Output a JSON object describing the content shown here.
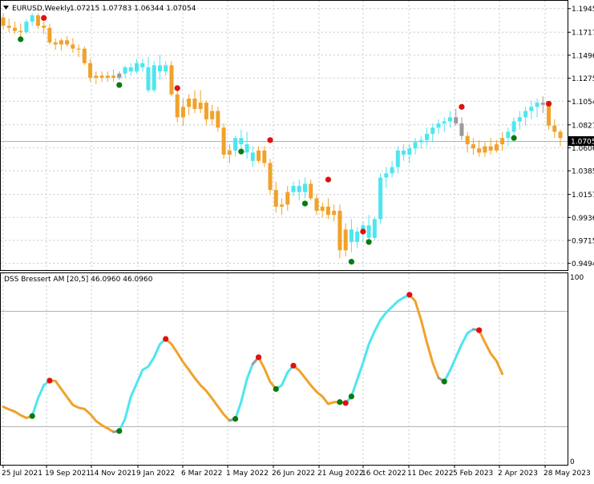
{
  "main_chart": {
    "title": "EURUSD,Weekly",
    "ohlc": "1.07215 1.07783 1.06344 1.07054",
    "current_price": "1.07054",
    "price_levels": [
      "1.19450",
      "1.17175",
      "1.14965",
      "1.12755",
      "1.10545",
      "1.08270",
      "1.06060",
      "1.03850",
      "1.01575",
      "0.99365",
      "0.97155",
      "0.94945"
    ]
  },
  "indicator": {
    "title": "DSS Bressert AM [20,5] 46.0960 46.0960",
    "scale_max": "100",
    "scale_min": "0"
  },
  "time_axis": [
    "25 Jul 2021",
    "19 Sep 2021",
    "14 Nov 2021",
    "9 Jan 2022",
    "6 Mar 2022",
    "1 May 2022",
    "26 Jun 2022",
    "21 Aug 2022",
    "16 Oct 2022",
    "11 Dec 2022",
    "5 Feb 2023",
    "2 Apr 2023",
    "28 May 2023"
  ],
  "colors": {
    "bull": "#4ee6ee",
    "bear": "#f0a22a",
    "neutral": "#9a9a9a",
    "dot_up": "#0a7a10",
    "dot_down": "#e01010"
  },
  "chart_data": [
    {
      "type": "candlestick",
      "symbol": "EURUSD",
      "timeframe": "Weekly",
      "ylim": [
        0.943,
        1.202
      ],
      "last_close": 1.07054,
      "candles": [
        {
          "o": 1.186,
          "h": 1.19,
          "l": 1.175,
          "c": 1.178,
          "t": "bear"
        },
        {
          "o": 1.178,
          "h": 1.185,
          "l": 1.172,
          "c": 1.176,
          "t": "bear"
        },
        {
          "o": 1.176,
          "h": 1.182,
          "l": 1.17,
          "c": 1.173,
          "t": "bear"
        },
        {
          "o": 1.173,
          "h": 1.18,
          "l": 1.166,
          "c": 1.172,
          "t": "bear"
        },
        {
          "o": 1.172,
          "h": 1.184,
          "l": 1.17,
          "c": 1.182,
          "t": "bull"
        },
        {
          "o": 1.182,
          "h": 1.19,
          "l": 1.178,
          "c": 1.188,
          "t": "bull"
        },
        {
          "o": 1.188,
          "h": 1.19,
          "l": 1.175,
          "c": 1.178,
          "t": "bear"
        },
        {
          "o": 1.178,
          "h": 1.182,
          "l": 1.17,
          "c": 1.176,
          "t": "bear"
        },
        {
          "o": 1.176,
          "h": 1.18,
          "l": 1.16,
          "c": 1.162,
          "t": "bear"
        },
        {
          "o": 1.162,
          "h": 1.166,
          "l": 1.155,
          "c": 1.16,
          "t": "bear"
        },
        {
          "o": 1.16,
          "h": 1.166,
          "l": 1.154,
          "c": 1.164,
          "t": "bear"
        },
        {
          "o": 1.164,
          "h": 1.168,
          "l": 1.158,
          "c": 1.16,
          "t": "bear"
        },
        {
          "o": 1.16,
          "h": 1.166,
          "l": 1.152,
          "c": 1.156,
          "t": "bear"
        },
        {
          "o": 1.156,
          "h": 1.16,
          "l": 1.148,
          "c": 1.156,
          "t": "bear"
        },
        {
          "o": 1.156,
          "h": 1.158,
          "l": 1.14,
          "c": 1.142,
          "t": "bear"
        },
        {
          "o": 1.142,
          "h": 1.146,
          "l": 1.124,
          "c": 1.128,
          "t": "bear"
        },
        {
          "o": 1.128,
          "h": 1.134,
          "l": 1.122,
          "c": 1.13,
          "t": "bear"
        },
        {
          "o": 1.13,
          "h": 1.134,
          "l": 1.124,
          "c": 1.128,
          "t": "bear"
        },
        {
          "o": 1.128,
          "h": 1.134,
          "l": 1.124,
          "c": 1.13,
          "t": "bear"
        },
        {
          "o": 1.13,
          "h": 1.136,
          "l": 1.124,
          "c": 1.128,
          "t": "bear"
        },
        {
          "o": 1.128,
          "h": 1.134,
          "l": 1.126,
          "c": 1.132,
          "t": "neutral"
        },
        {
          "o": 1.132,
          "h": 1.14,
          "l": 1.128,
          "c": 1.138,
          "t": "bull"
        },
        {
          "o": 1.138,
          "h": 1.142,
          "l": 1.13,
          "c": 1.134,
          "t": "bull"
        },
        {
          "o": 1.134,
          "h": 1.146,
          "l": 1.132,
          "c": 1.142,
          "t": "bull"
        },
        {
          "o": 1.142,
          "h": 1.146,
          "l": 1.134,
          "c": 1.138,
          "t": "bull"
        },
        {
          "o": 1.138,
          "h": 1.148,
          "l": 1.114,
          "c": 1.116,
          "t": "bull"
        },
        {
          "o": 1.116,
          "h": 1.144,
          "l": 1.114,
          "c": 1.14,
          "t": "bull"
        },
        {
          "o": 1.14,
          "h": 1.15,
          "l": 1.126,
          "c": 1.134,
          "t": "bull"
        },
        {
          "o": 1.134,
          "h": 1.144,
          "l": 1.13,
          "c": 1.14,
          "t": "bull"
        },
        {
          "o": 1.14,
          "h": 1.144,
          "l": 1.11,
          "c": 1.112,
          "t": "bear"
        },
        {
          "o": 1.112,
          "h": 1.116,
          "l": 1.085,
          "c": 1.09,
          "t": "bear"
        },
        {
          "o": 1.09,
          "h": 1.108,
          "l": 1.082,
          "c": 1.1,
          "t": "bear"
        },
        {
          "o": 1.1,
          "h": 1.112,
          "l": 1.092,
          "c": 1.108,
          "t": "bear"
        },
        {
          "o": 1.108,
          "h": 1.116,
          "l": 1.094,
          "c": 1.098,
          "t": "bear"
        },
        {
          "o": 1.098,
          "h": 1.116,
          "l": 1.094,
          "c": 1.104,
          "t": "bear"
        },
        {
          "o": 1.104,
          "h": 1.106,
          "l": 1.082,
          "c": 1.088,
          "t": "bear"
        },
        {
          "o": 1.088,
          "h": 1.102,
          "l": 1.082,
          "c": 1.096,
          "t": "bear"
        },
        {
          "o": 1.096,
          "h": 1.1,
          "l": 1.076,
          "c": 1.08,
          "t": "bear"
        },
        {
          "o": 1.08,
          "h": 1.084,
          "l": 1.05,
          "c": 1.054,
          "t": "bear"
        },
        {
          "o": 1.054,
          "h": 1.064,
          "l": 1.046,
          "c": 1.058,
          "t": "bear"
        },
        {
          "o": 1.058,
          "h": 1.072,
          "l": 1.052,
          "c": 1.07,
          "t": "bull"
        },
        {
          "o": 1.07,
          "h": 1.078,
          "l": 1.06,
          "c": 1.064,
          "t": "bull"
        },
        {
          "o": 1.064,
          "h": 1.076,
          "l": 1.05,
          "c": 1.056,
          "t": "bull"
        },
        {
          "o": 1.056,
          "h": 1.062,
          "l": 1.042,
          "c": 1.048,
          "t": "bull"
        },
        {
          "o": 1.048,
          "h": 1.062,
          "l": 1.046,
          "c": 1.058,
          "t": "bear"
        },
        {
          "o": 1.058,
          "h": 1.062,
          "l": 1.042,
          "c": 1.046,
          "t": "bear"
        },
        {
          "o": 1.046,
          "h": 1.05,
          "l": 1.016,
          "c": 1.02,
          "t": "bear"
        },
        {
          "o": 1.02,
          "h": 1.028,
          "l": 0.998,
          "c": 1.004,
          "t": "bear"
        },
        {
          "o": 1.004,
          "h": 1.012,
          "l": 0.996,
          "c": 1.006,
          "t": "bear"
        },
        {
          "o": 1.006,
          "h": 1.024,
          "l": 1.0,
          "c": 1.018,
          "t": "bear"
        },
        {
          "o": 1.018,
          "h": 1.028,
          "l": 1.014,
          "c": 1.024,
          "t": "bull"
        },
        {
          "o": 1.024,
          "h": 1.03,
          "l": 1.01,
          "c": 1.018,
          "t": "bull"
        },
        {
          "o": 1.018,
          "h": 1.032,
          "l": 1.012,
          "c": 1.026,
          "t": "bull"
        },
        {
          "o": 1.026,
          "h": 1.03,
          "l": 1.01,
          "c": 1.012,
          "t": "bear"
        },
        {
          "o": 1.012,
          "h": 1.016,
          "l": 0.996,
          "c": 1.0,
          "t": "bear"
        },
        {
          "o": 1.0,
          "h": 1.008,
          "l": 0.994,
          "c": 1.004,
          "t": "bear"
        },
        {
          "o": 1.004,
          "h": 1.012,
          "l": 0.992,
          "c": 0.996,
          "t": "bear"
        },
        {
          "o": 0.996,
          "h": 1.006,
          "l": 0.99,
          "c": 1.0,
          "t": "bear"
        },
        {
          "o": 1.0,
          "h": 1.006,
          "l": 0.954,
          "c": 0.962,
          "t": "bear"
        },
        {
          "o": 0.962,
          "h": 0.988,
          "l": 0.956,
          "c": 0.982,
          "t": "bear"
        },
        {
          "o": 0.982,
          "h": 0.992,
          "l": 0.96,
          "c": 0.97,
          "t": "bull"
        },
        {
          "o": 0.97,
          "h": 0.984,
          "l": 0.964,
          "c": 0.98,
          "t": "bull"
        },
        {
          "o": 0.98,
          "h": 0.99,
          "l": 0.97,
          "c": 0.986,
          "t": "bull"
        },
        {
          "o": 0.986,
          "h": 0.996,
          "l": 0.97,
          "c": 0.974,
          "t": "bull"
        },
        {
          "o": 0.974,
          "h": 0.994,
          "l": 0.972,
          "c": 0.992,
          "t": "bull"
        },
        {
          "o": 0.992,
          "h": 1.036,
          "l": 0.988,
          "c": 1.032,
          "t": "bull"
        },
        {
          "o": 1.032,
          "h": 1.042,
          "l": 1.022,
          "c": 1.036,
          "t": "bull"
        },
        {
          "o": 1.036,
          "h": 1.048,
          "l": 1.032,
          "c": 1.042,
          "t": "bull"
        },
        {
          "o": 1.042,
          "h": 1.062,
          "l": 1.036,
          "c": 1.058,
          "t": "bull"
        },
        {
          "o": 1.058,
          "h": 1.064,
          "l": 1.048,
          "c": 1.054,
          "t": "bull"
        },
        {
          "o": 1.054,
          "h": 1.064,
          "l": 1.046,
          "c": 1.06,
          "t": "bull"
        },
        {
          "o": 1.06,
          "h": 1.07,
          "l": 1.054,
          "c": 1.066,
          "t": "bull"
        },
        {
          "o": 1.066,
          "h": 1.072,
          "l": 1.06,
          "c": 1.068,
          "t": "bull"
        },
        {
          "o": 1.068,
          "h": 1.08,
          "l": 1.062,
          "c": 1.074,
          "t": "bull"
        },
        {
          "o": 1.074,
          "h": 1.084,
          "l": 1.066,
          "c": 1.08,
          "t": "bull"
        },
        {
          "o": 1.08,
          "h": 1.088,
          "l": 1.074,
          "c": 1.084,
          "t": "bull"
        },
        {
          "o": 1.084,
          "h": 1.09,
          "l": 1.076,
          "c": 1.086,
          "t": "bull"
        },
        {
          "o": 1.086,
          "h": 1.096,
          "l": 1.08,
          "c": 1.09,
          "t": "bull"
        },
        {
          "o": 1.09,
          "h": 1.098,
          "l": 1.082,
          "c": 1.084,
          "t": "neutral"
        },
        {
          "o": 1.084,
          "h": 1.09,
          "l": 1.068,
          "c": 1.072,
          "t": "neutral"
        },
        {
          "o": 1.072,
          "h": 1.076,
          "l": 1.056,
          "c": 1.064,
          "t": "bear"
        },
        {
          "o": 1.064,
          "h": 1.07,
          "l": 1.054,
          "c": 1.06,
          "t": "bear"
        },
        {
          "o": 1.06,
          "h": 1.068,
          "l": 1.052,
          "c": 1.056,
          "t": "bear"
        },
        {
          "o": 1.056,
          "h": 1.066,
          "l": 1.052,
          "c": 1.062,
          "t": "bear"
        },
        {
          "o": 1.062,
          "h": 1.07,
          "l": 1.054,
          "c": 1.058,
          "t": "bear"
        },
        {
          "o": 1.058,
          "h": 1.068,
          "l": 1.056,
          "c": 1.064,
          "t": "bear"
        },
        {
          "o": 1.064,
          "h": 1.076,
          "l": 1.058,
          "c": 1.07,
          "t": "bear"
        },
        {
          "o": 1.07,
          "h": 1.08,
          "l": 1.062,
          "c": 1.076,
          "t": "bull"
        },
        {
          "o": 1.076,
          "h": 1.09,
          "l": 1.07,
          "c": 1.086,
          "t": "bull"
        },
        {
          "o": 1.086,
          "h": 1.096,
          "l": 1.078,
          "c": 1.09,
          "t": "bull"
        },
        {
          "o": 1.09,
          "h": 1.1,
          "l": 1.082,
          "c": 1.096,
          "t": "bull"
        },
        {
          "o": 1.096,
          "h": 1.106,
          "l": 1.088,
          "c": 1.1,
          "t": "bull"
        },
        {
          "o": 1.1,
          "h": 1.108,
          "l": 1.09,
          "c": 1.104,
          "t": "bull"
        },
        {
          "o": 1.104,
          "h": 1.11,
          "l": 1.094,
          "c": 1.102,
          "t": "neutral"
        },
        {
          "o": 1.102,
          "h": 1.104,
          "l": 1.078,
          "c": 1.082,
          "t": "bear"
        },
        {
          "o": 1.082,
          "h": 1.088,
          "l": 1.07,
          "c": 1.076,
          "t": "bear"
        },
        {
          "o": 1.076,
          "h": 1.078,
          "l": 1.062,
          "c": 1.07,
          "t": "bear"
        }
      ],
      "dots": [
        {
          "i": 3,
          "v": 1.165,
          "t": "up"
        },
        {
          "i": 7,
          "v": 1.1855,
          "t": "down"
        },
        {
          "i": 20,
          "v": 1.121,
          "t": "up"
        },
        {
          "i": 30,
          "v": 1.118,
          "t": "down"
        },
        {
          "i": 41,
          "v": 1.057,
          "t": "up"
        },
        {
          "i": 46,
          "v": 1.068,
          "t": "down"
        },
        {
          "i": 52,
          "v": 1.007,
          "t": "up"
        },
        {
          "i": 56,
          "v": 1.03,
          "t": "down"
        },
        {
          "i": 60,
          "v": 0.951,
          "t": "up"
        },
        {
          "i": 62,
          "v": 0.98,
          "t": "down"
        },
        {
          "i": 63,
          "v": 0.97,
          "t": "up"
        },
        {
          "i": 79,
          "v": 1.1,
          "t": "down"
        },
        {
          "i": 88,
          "v": 1.07,
          "t": "up"
        },
        {
          "i": 94,
          "v": 1.103,
          "t": "down"
        }
      ]
    },
    {
      "type": "line",
      "title": "DSS Bressert AM [20,5] 46.0960 46.0960",
      "ylim": [
        0,
        100
      ],
      "levels": [
        20,
        80
      ],
      "last_value": 46.096,
      "values": [
        28.5,
        27.1,
        25.9,
        24.0,
        22.5,
        23.5,
        33.0,
        40.0,
        42.5,
        42.3,
        38.0,
        33.7,
        29.5,
        28.0,
        27.3,
        24.6,
        20.9,
        18.6,
        16.9,
        15.0,
        15.5,
        22.0,
        34.0,
        41.0,
        48.2,
        50.0,
        55.0,
        62.0,
        64.8,
        62.0,
        57.4,
        52.4,
        48.2,
        43.9,
        40.0,
        37.0,
        32.9,
        28.6,
        24.4,
        21.1,
        22.0,
        31.0,
        43.4,
        51.4,
        55.0,
        49.0,
        41.9,
        38.0,
        40.0,
        47.0,
        50.5,
        48.0,
        44.0,
        40.0,
        36.5,
        34.0,
        30.0,
        31.0,
        31.0,
        30.5,
        34.0,
        43.0,
        52.0,
        62.0,
        69.0,
        75.0,
        79.0,
        82.0,
        85.0,
        87.0,
        88.5,
        85.0,
        75.0,
        63.0,
        52.0,
        44.0,
        42.0,
        48.0,
        55.0,
        62.0,
        68.0,
        70.0,
        69.5,
        63.0,
        57.0,
        53.0,
        46.1
      ],
      "segments": [
        {
          "from": 0,
          "to": 5,
          "t": "bear"
        },
        {
          "from": 5,
          "to": 8,
          "t": "bull"
        },
        {
          "from": 8,
          "to": 19,
          "t": "bear"
        },
        {
          "from": 19,
          "to": 20,
          "t": "neutral"
        },
        {
          "from": 20,
          "to": 28,
          "t": "bull"
        },
        {
          "from": 28,
          "to": 39,
          "t": "bear"
        },
        {
          "from": 39,
          "to": 40,
          "t": "neutral"
        },
        {
          "from": 40,
          "to": 43,
          "t": "bull"
        },
        {
          "from": 43,
          "to": 44,
          "t": "neutral"
        },
        {
          "from": 44,
          "to": 47,
          "t": "bear"
        },
        {
          "from": 47,
          "to": 50,
          "t": "bull"
        },
        {
          "from": 50,
          "to": 59,
          "t": "bear"
        },
        {
          "from": 59,
          "to": 70,
          "t": "bull"
        },
        {
          "from": 70,
          "to": 75,
          "t": "bear"
        },
        {
          "from": 75,
          "to": 76,
          "t": "neutral"
        },
        {
          "from": 76,
          "to": 81,
          "t": "bull"
        },
        {
          "from": 81,
          "to": 82,
          "t": "neutral"
        },
        {
          "from": 82,
          "to": 86,
          "t": "bear"
        }
      ],
      "dots": [
        {
          "i": 5,
          "t": "up"
        },
        {
          "i": 8,
          "t": "down"
        },
        {
          "i": 20,
          "t": "up"
        },
        {
          "i": 28,
          "t": "down"
        },
        {
          "i": 40,
          "t": "up"
        },
        {
          "i": 44,
          "t": "down"
        },
        {
          "i": 47,
          "t": "up"
        },
        {
          "i": 50,
          "t": "down"
        },
        {
          "i": 58,
          "t": "up"
        },
        {
          "i": 59,
          "t": "down"
        },
        {
          "i": 60,
          "t": "up"
        },
        {
          "i": 70,
          "t": "down"
        },
        {
          "i": 76,
          "t": "up"
        },
        {
          "i": 82,
          "t": "down"
        }
      ]
    }
  ]
}
